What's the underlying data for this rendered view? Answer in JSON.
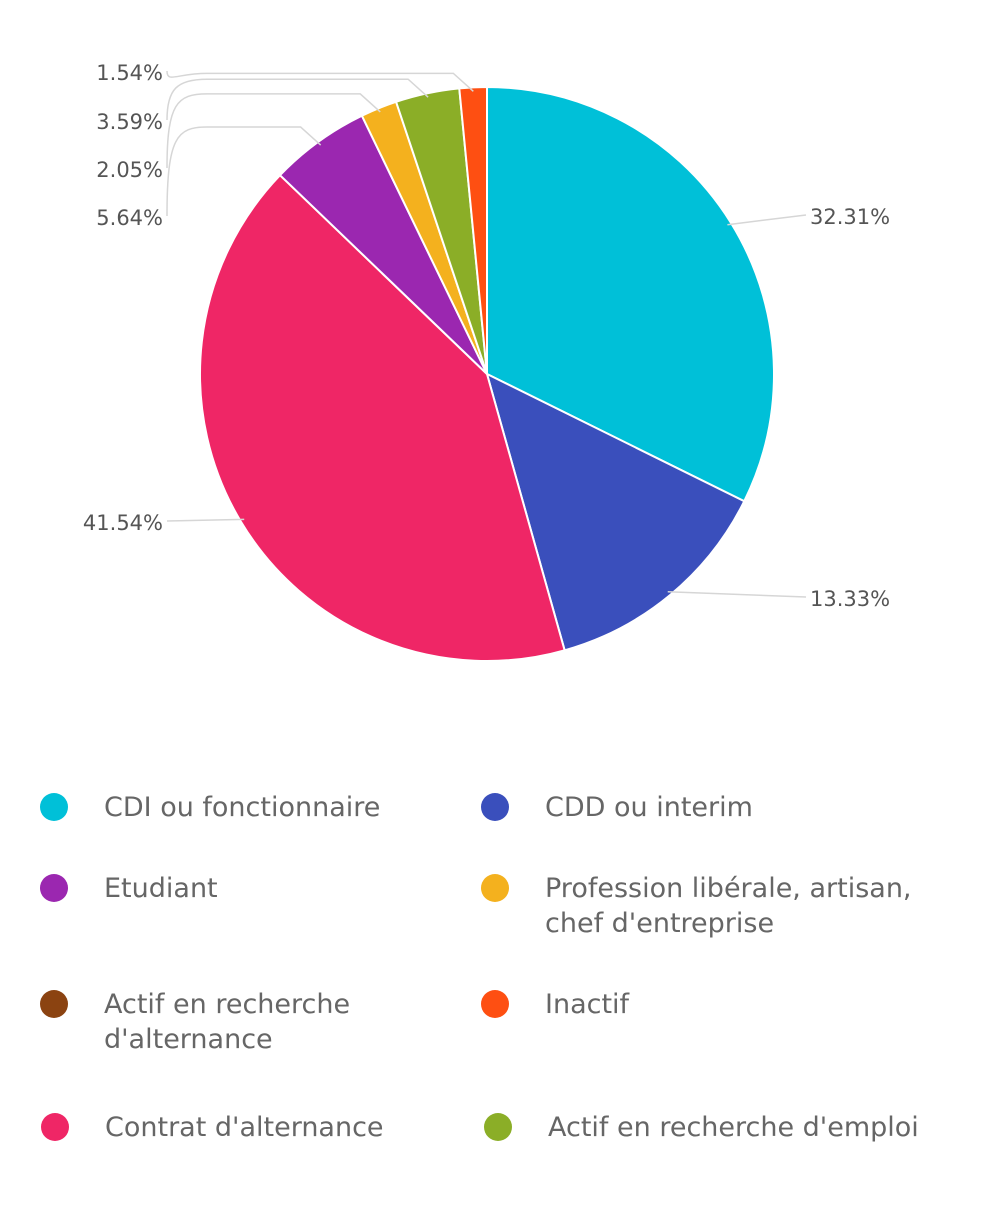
{
  "chart_data": {
    "type": "pie",
    "start_angle_deg": 0,
    "direction": "clockwise",
    "slices": [
      {
        "label": "CDI ou fonctionnaire",
        "value": 32.31,
        "display": "32.31%",
        "color": "#00c0d8"
      },
      {
        "label": "CDD ou interim",
        "value": 13.33,
        "display": "13.33%",
        "color": "#3a4fbc"
      },
      {
        "label": "Contrat d'alternance",
        "value": 41.54,
        "display": "41.54%",
        "color": "#ef2666"
      },
      {
        "label": "Etudiant",
        "value": 5.64,
        "display": "5.64%",
        "color": "#9b27b0"
      },
      {
        "label": "Profession libérale, artisan, chef d'entreprise",
        "value": 2.05,
        "display": "2.05%",
        "color": "#f4b11e"
      },
      {
        "label": "Actif en recherche d'emploi",
        "value": 3.59,
        "display": "3.59%",
        "color": "#8bae27"
      },
      {
        "label": "Inactif",
        "value": 1.54,
        "display": "1.54%",
        "color": "#fe4f12"
      },
      {
        "label": "Actif en recherche d'alternance",
        "value": 0,
        "display": "",
        "color": "#8b4311"
      }
    ],
    "legend": {
      "placement": "bottom",
      "items": [
        {
          "label": "CDI ou fonctionnaire",
          "color": "#00c0d8"
        },
        {
          "label": "CDD ou interim",
          "color": "#3a4fbc"
        },
        {
          "label": "Etudiant",
          "color": "#9b27b0"
        },
        {
          "label": "Profession libérale, artisan, chef d'entreprise",
          "color": "#f4b11e"
        },
        {
          "label": "Actif en recherche d'alternance",
          "color": "#8b4311"
        },
        {
          "label": "Inactif",
          "color": "#fe4f12"
        },
        {
          "label": "Contrat d'alternance",
          "color": "#ef2666"
        },
        {
          "label": "Actif en recherche d'emploi",
          "color": "#8bae27"
        }
      ]
    }
  }
}
